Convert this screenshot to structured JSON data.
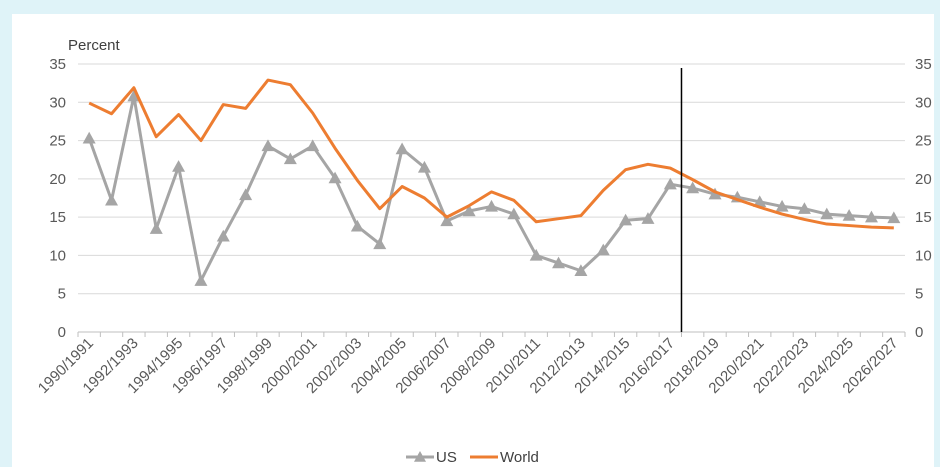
{
  "chart_data": {
    "type": "line",
    "ylabel": "Percent",
    "ylim": [
      0,
      35
    ],
    "yticks": [
      0,
      5,
      10,
      15,
      20,
      25,
      30,
      35
    ],
    "secondary_y_axis": true,
    "x": [
      "1990/1991",
      "1991/1992",
      "1992/1993",
      "1993/1994",
      "1994/1995",
      "1995/1996",
      "1996/1997",
      "1997/1998",
      "1998/1999",
      "1999/2000",
      "2000/2001",
      "2001/2002",
      "2002/2003",
      "2003/2004",
      "2004/2005",
      "2005/2006",
      "2006/2007",
      "2007/2008",
      "2008/2009",
      "2009/2010",
      "2010/2011",
      "2011/2012",
      "2012/2013",
      "2013/2014",
      "2014/2015",
      "2015/2016",
      "2016/2017",
      "2017/2018",
      "2018/2019",
      "2019/2020",
      "2020/2021",
      "2021/2022",
      "2022/2023",
      "2023/2024",
      "2024/2025",
      "2025/2026",
      "2026/2027"
    ],
    "x_tick_labels": [
      "1990/1991",
      "1992/1993",
      "1994/1995",
      "1996/1997",
      "1998/1999",
      "2000/2001",
      "2002/2003",
      "2004/2005",
      "2006/2007",
      "2008/2009",
      "2010/2011",
      "2012/2013",
      "2014/2015",
      "2016/2017",
      "2018/2019",
      "2020/2021",
      "2022/2023",
      "2024/2025",
      "2026/2027"
    ],
    "vertical_marker_between": [
      "2016/2017",
      "2017/2018"
    ],
    "legend_position": "bottom",
    "series": [
      {
        "name": "US",
        "color": "#a5a5a5",
        "marker": "triangle",
        "values": [
          25.3,
          17.2,
          30.8,
          13.5,
          21.6,
          6.7,
          12.5,
          17.9,
          24.3,
          22.6,
          24.3,
          20.1,
          13.8,
          11.5,
          23.9,
          21.5,
          14.5,
          15.8,
          16.4,
          15.4,
          10.0,
          9.0,
          8.0,
          10.7,
          14.6,
          14.8,
          19.3,
          18.8,
          18.0,
          17.6,
          17.0,
          16.4,
          16.1,
          15.4,
          15.2,
          15.0,
          14.9
        ]
      },
      {
        "name": "World",
        "color": "#ed7d31",
        "marker": "none",
        "values": [
          29.9,
          28.5,
          31.9,
          25.5,
          28.4,
          25.0,
          29.7,
          29.2,
          32.9,
          32.3,
          28.6,
          24.0,
          19.8,
          16.1,
          19.0,
          17.5,
          15.0,
          16.5,
          18.3,
          17.2,
          14.4,
          14.8,
          15.2,
          18.5,
          21.2,
          21.9,
          21.4,
          19.9,
          18.3,
          17.3,
          16.3,
          15.4,
          14.7,
          14.1,
          13.9,
          13.7,
          13.6
        ]
      }
    ]
  }
}
